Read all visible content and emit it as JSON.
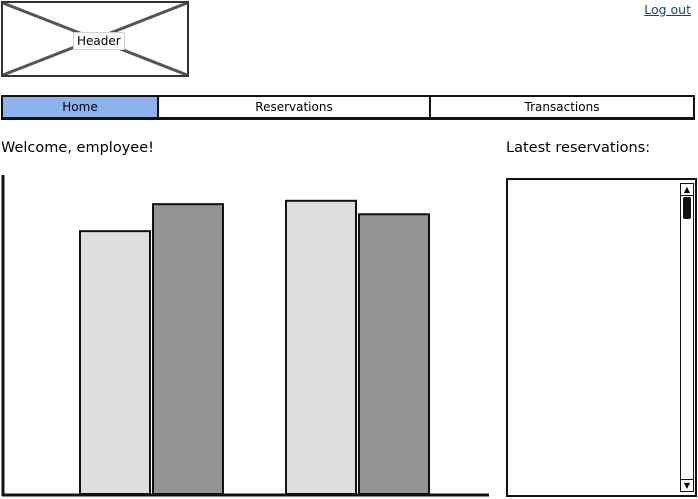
{
  "header": {
    "placeholder_label": "Header",
    "logout_label": "Log out"
  },
  "nav": {
    "tabs": [
      {
        "label": "Home",
        "active": true
      },
      {
        "label": "Reservations",
        "active": false
      },
      {
        "label": "Transactions",
        "active": false
      }
    ]
  },
  "main": {
    "welcome_text": "Welcome, employee!"
  },
  "sidebar": {
    "title": "Latest reservations:",
    "items": []
  },
  "colors": {
    "active_tab": "#8cb3ee",
    "series_light": "#dedede",
    "series_dark": "#949494",
    "link": "#0b4a8f"
  },
  "chart_data": {
    "type": "bar",
    "categories": [
      "",
      ""
    ],
    "series": [
      {
        "values": [
          78,
          87
        ],
        "color": "#dedede"
      },
      {
        "values": [
          86,
          83
        ],
        "color": "#949494"
      }
    ],
    "ylim": [
      0,
      100
    ],
    "grid": false,
    "legend": "none"
  }
}
